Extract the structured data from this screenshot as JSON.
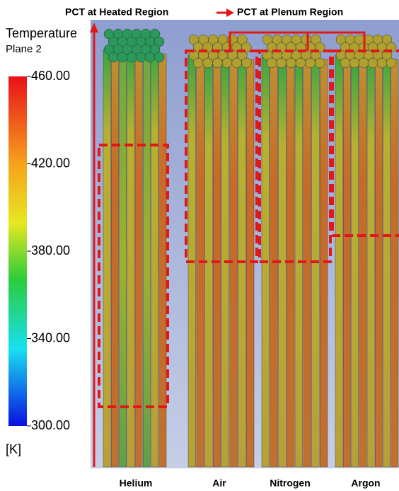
{
  "annotations": {
    "heated": "PCT at Heated Region",
    "plenum": "PCT at Plenum Region"
  },
  "colorbar": {
    "title": "Temperature",
    "subtitle": "Plane 2",
    "unit": "[K]",
    "range": [
      300,
      460
    ],
    "ticks": [
      {
        "value": 460,
        "label": "460.00"
      },
      {
        "value": 420,
        "label": "420.00"
      },
      {
        "value": 380,
        "label": "380.00"
      },
      {
        "value": 340,
        "label": "340.00"
      },
      {
        "value": 300,
        "label": "300.00"
      }
    ]
  },
  "panels": [
    "Helium",
    "Air",
    "Nitrogen",
    "Argon"
  ]
}
